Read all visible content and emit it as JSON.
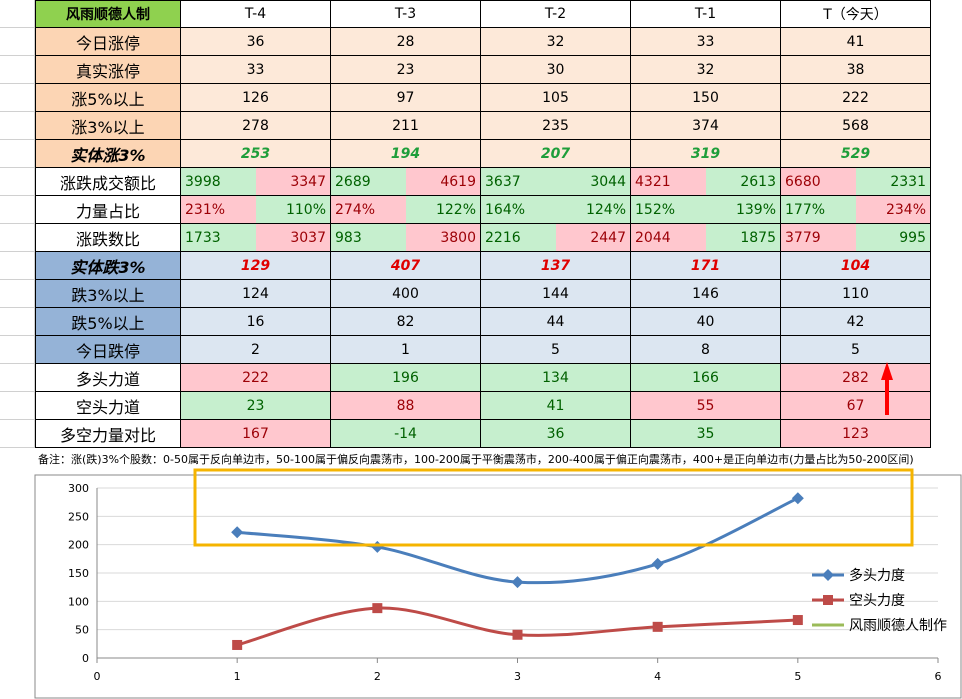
{
  "table": {
    "header": [
      "风雨顺德人制",
      "T-4",
      "T-3",
      "T-2",
      "T-1",
      "T（今天）"
    ],
    "rows": [
      {
        "label": "今日涨停",
        "cells": [
          36,
          28,
          32,
          33,
          41
        ]
      },
      {
        "label": "真实涨停",
        "cells": [
          33,
          23,
          30,
          32,
          38
        ]
      },
      {
        "label": "涨5%以上",
        "cells": [
          126,
          97,
          105,
          150,
          222
        ]
      },
      {
        "label": "涨3%以上",
        "cells": [
          278,
          211,
          235,
          374,
          568
        ]
      },
      {
        "label": "实体涨3%",
        "cells": [
          253,
          194,
          207,
          319,
          529
        ]
      },
      {
        "label": "涨跌成交额比",
        "cells": [
          [
            3998,
            3347
          ],
          [
            2689,
            4619
          ],
          [
            3637,
            3044
          ],
          [
            4321,
            2613
          ],
          [
            6680,
            2331
          ]
        ]
      },
      {
        "label": "力量占比",
        "cells": [
          [
            "231%",
            "110%"
          ],
          [
            "274%",
            "122%"
          ],
          [
            "164%",
            "124%"
          ],
          [
            "152%",
            "139%"
          ],
          [
            "177%",
            "234%"
          ]
        ]
      },
      {
        "label": "涨跌数比",
        "cells": [
          [
            1733,
            3037
          ],
          [
            983,
            3800
          ],
          [
            2216,
            2447
          ],
          [
            2044,
            1875
          ],
          [
            3779,
            995
          ]
        ]
      },
      {
        "label": "实体跌3%",
        "cells": [
          129,
          407,
          137,
          171,
          104
        ]
      },
      {
        "label": "跌3%以上",
        "cells": [
          124,
          400,
          144,
          146,
          110
        ]
      },
      {
        "label": "跌5%以上",
        "cells": [
          16,
          82,
          44,
          40,
          42
        ]
      },
      {
        "label": "今日跌停",
        "cells": [
          2,
          1,
          5,
          8,
          5
        ]
      },
      {
        "label": "多头力道",
        "cells": [
          222,
          196,
          134,
          166,
          282
        ]
      },
      {
        "label": "空头力道",
        "cells": [
          23,
          88,
          41,
          55,
          67
        ]
      },
      {
        "label": "多空力量对比",
        "cells": [
          167,
          -14,
          36,
          35,
          123
        ]
      }
    ]
  },
  "note": "备注：涨(跌)3%个股数：0-50属于反向单边市，50-100属于偏反向震荡市，100-200属于平衡震荡市，200-400属于偏正向震荡市，400+是正向单边市(力量占比为50-200区间)",
  "chart_data": {
    "type": "line",
    "smooth": true,
    "x": [
      1,
      2,
      3,
      4,
      5
    ],
    "series": [
      {
        "name": "多头力度",
        "color": "#4a7ebb",
        "marker": "diamond",
        "values": [
          222,
          196,
          134,
          166,
          282
        ]
      },
      {
        "name": "空头力度",
        "color": "#be4b48",
        "marker": "square",
        "values": [
          23,
          88,
          41,
          55,
          67
        ]
      },
      {
        "name": "风雨顺德人制作",
        "color": "#9bbb59",
        "values": [
          null,
          null,
          null,
          null,
          null
        ]
      }
    ],
    "xlim": [
      0,
      6
    ],
    "xticks": [
      0,
      1,
      2,
      3,
      4,
      5,
      6
    ],
    "ylim": [
      0,
      300
    ],
    "yticks": [
      0,
      50,
      100,
      150,
      200,
      250,
      300
    ],
    "grid": true,
    "legend": "right"
  }
}
